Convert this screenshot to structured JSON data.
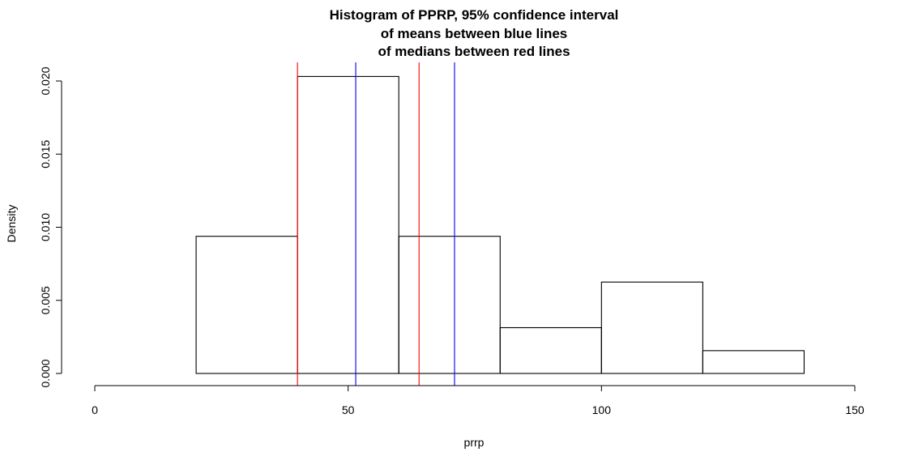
{
  "chart_data": {
    "type": "histogram",
    "title": [
      "Histogram of PPRP, 95% confidence interval",
      "of means between blue lines",
      "of medians between red lines"
    ],
    "xlabel": "prrp",
    "ylabel": "Density",
    "xlim": [
      0,
      150
    ],
    "ylim": [
      0,
      0.02
    ],
    "x_ticks": [
      0,
      50,
      100,
      150
    ],
    "y_ticks": [
      0.0,
      0.005,
      0.01,
      0.015,
      0.02
    ],
    "x_tick_labels": [
      "0",
      "50",
      "100",
      "150"
    ],
    "y_tick_labels": [
      "0.000",
      "0.005",
      "0.010",
      "0.015",
      "0.020"
    ],
    "bins": [
      {
        "from": 20,
        "to": 40,
        "density": 0.00938
      },
      {
        "from": 40,
        "to": 60,
        "density": 0.02031
      },
      {
        "from": 60,
        "to": 80,
        "density": 0.00938
      },
      {
        "from": 80,
        "to": 100,
        "density": 0.00313
      },
      {
        "from": 100,
        "to": 120,
        "density": 0.00625
      },
      {
        "from": 120,
        "to": 140,
        "density": 0.00156
      }
    ],
    "vertical_lines": [
      {
        "x": 40,
        "color": "#ff0000"
      },
      {
        "x": 51.5,
        "color": "#0000ff"
      },
      {
        "x": 64,
        "color": "#ff0000"
      },
      {
        "x": 71,
        "color": "#0000ff"
      }
    ]
  }
}
